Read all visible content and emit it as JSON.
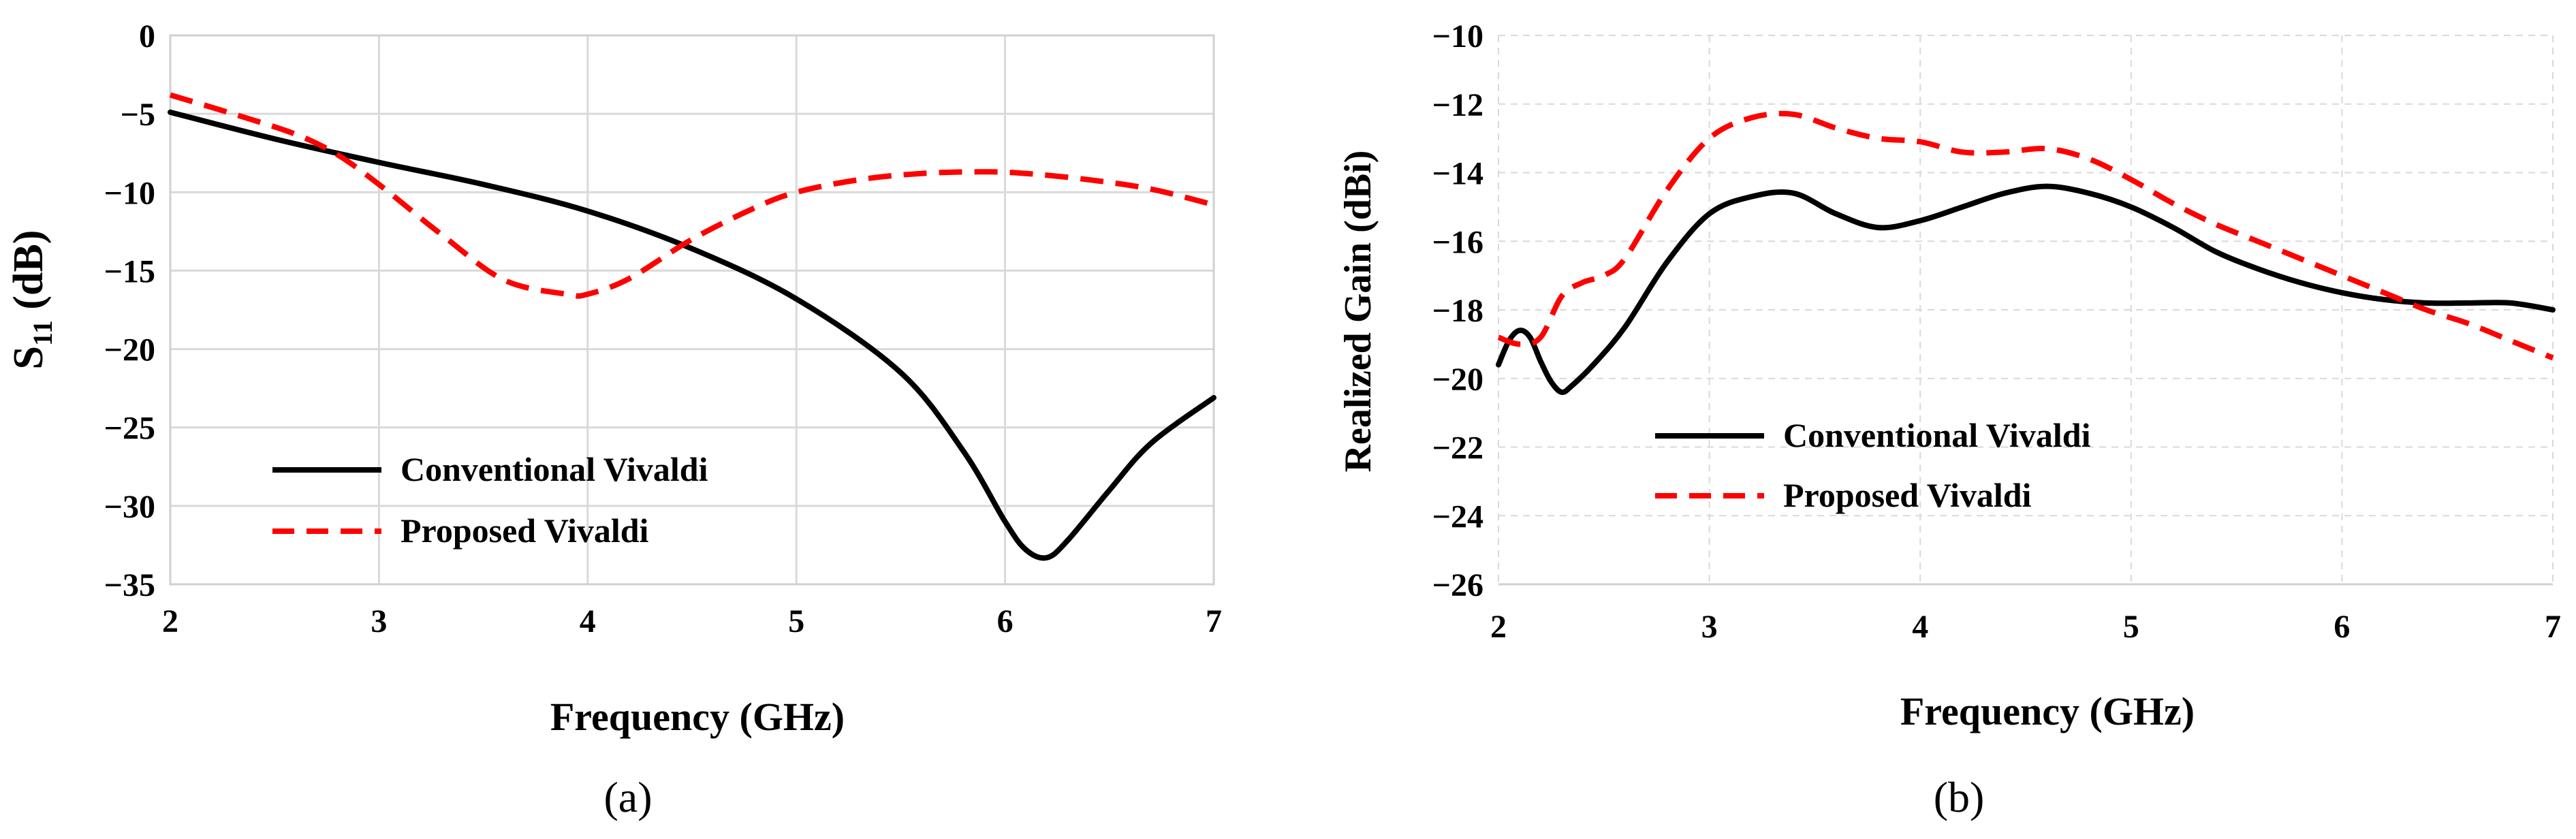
{
  "chart_data": [
    {
      "type": "line",
      "panel_label": "(a)",
      "title": "",
      "xlabel": "Frequency (GHz)",
      "ylabel_main": "S",
      "ylabel_sub": "11",
      "ylabel_tail": " (dB)",
      "xlim": [
        2,
        7
      ],
      "ylim": [
        -35,
        0
      ],
      "xticks": [
        2,
        3,
        4,
        5,
        6,
        7
      ],
      "yticks": [
        0,
        -5,
        -10,
        -15,
        -20,
        -25,
        -30,
        -35
      ],
      "grid": "major",
      "legend_position": "bottom-left",
      "series": [
        {
          "name": "Conventional Vivaldi",
          "color": "#000000",
          "style": "solid",
          "x": [
            2.0,
            2.5,
            3.0,
            3.5,
            4.0,
            4.5,
            5.0,
            5.5,
            5.8,
            6.0,
            6.1,
            6.2,
            6.3,
            6.5,
            6.7,
            7.0
          ],
          "y": [
            -4.9,
            -6.6,
            -8.1,
            -9.5,
            -11.2,
            -13.6,
            -16.8,
            -21.5,
            -26.5,
            -31.0,
            -32.8,
            -33.3,
            -32.2,
            -29.0,
            -26.0,
            -23.1
          ]
        },
        {
          "name": "Proposed Vivaldi",
          "color": "#ff0000",
          "style": "dashed",
          "x": [
            2.0,
            2.3,
            2.6,
            2.8,
            3.0,
            3.3,
            3.6,
            3.9,
            4.0,
            4.2,
            4.5,
            4.8,
            5.0,
            5.3,
            5.6,
            5.9,
            6.1,
            6.4,
            6.7,
            7.0
          ],
          "y": [
            -3.8,
            -5.0,
            -6.3,
            -7.6,
            -9.5,
            -12.7,
            -15.6,
            -16.5,
            -16.5,
            -15.5,
            -13.0,
            -11.0,
            -10.0,
            -9.2,
            -8.8,
            -8.7,
            -8.8,
            -9.2,
            -9.8,
            -10.8
          ]
        }
      ]
    },
    {
      "type": "line",
      "panel_label": "(b)",
      "title": "",
      "xlabel": "Frequency (GHz)",
      "ylabel": "Realized Gain (dBi)",
      "xlim": [
        2,
        7
      ],
      "ylim": [
        -26,
        -10
      ],
      "xticks": [
        2,
        3,
        4,
        5,
        6,
        7
      ],
      "yticks": [
        -10,
        -12,
        -14,
        -16,
        -18,
        -20,
        -22,
        -24,
        -26
      ],
      "grid": "major dashed",
      "legend_position": "center-left",
      "series": [
        {
          "name": "Conventional Vivaldi",
          "color": "#000000",
          "style": "solid",
          "x": [
            2.0,
            2.05,
            2.1,
            2.15,
            2.2,
            2.25,
            2.3,
            2.35,
            2.45,
            2.6,
            2.8,
            3.0,
            3.2,
            3.4,
            3.6,
            3.8,
            4.0,
            4.2,
            4.4,
            4.6,
            4.8,
            5.0,
            5.2,
            5.4,
            5.6,
            5.8,
            6.0,
            6.2,
            6.4,
            6.6,
            6.8,
            7.0
          ],
          "y": [
            -19.6,
            -18.9,
            -18.6,
            -18.8,
            -19.5,
            -20.1,
            -20.4,
            -20.2,
            -19.6,
            -18.5,
            -16.6,
            -15.2,
            -14.7,
            -14.6,
            -15.2,
            -15.6,
            -15.4,
            -15.0,
            -14.6,
            -14.4,
            -14.6,
            -15.0,
            -15.6,
            -16.3,
            -16.8,
            -17.2,
            -17.5,
            -17.7,
            -17.8,
            -17.8,
            -17.8,
            -18.0
          ]
        },
        {
          "name": "Proposed Vivaldi",
          "color": "#ff0000",
          "style": "dashed",
          "x": [
            2.0,
            2.1,
            2.2,
            2.3,
            2.4,
            2.5,
            2.6,
            2.8,
            3.0,
            3.2,
            3.4,
            3.6,
            3.8,
            4.0,
            4.2,
            4.4,
            4.6,
            4.8,
            5.0,
            5.2,
            5.4,
            5.6,
            5.8,
            6.0,
            6.2,
            6.4,
            6.6,
            6.8,
            7.0
          ],
          "y": [
            -18.8,
            -19.0,
            -18.8,
            -17.6,
            -17.2,
            -17.0,
            -16.5,
            -14.5,
            -13.0,
            -12.4,
            -12.3,
            -12.7,
            -13.0,
            -13.1,
            -13.4,
            -13.4,
            -13.3,
            -13.6,
            -14.2,
            -14.9,
            -15.5,
            -16.0,
            -16.5,
            -17.0,
            -17.5,
            -18.0,
            -18.4,
            -18.9,
            -19.4
          ]
        }
      ]
    }
  ]
}
